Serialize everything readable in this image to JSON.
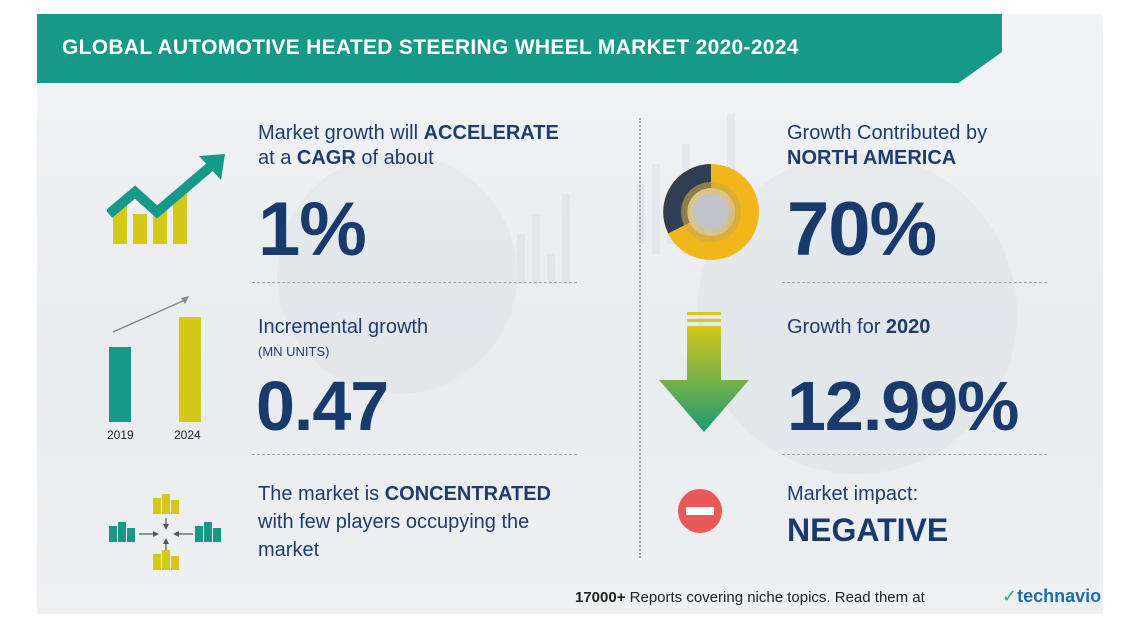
{
  "title": "GLOBAL AUTOMOTIVE HEATED STEERING WHEEL MARKET 2020-2024",
  "cagr": {
    "line1_prefix": "Market growth will ",
    "line1_bold": "ACCELERATE",
    "line2_prefix": "at a ",
    "line2_bold": "CAGR",
    "line2_suffix": " of about",
    "value": "1%"
  },
  "incremental": {
    "label": "Incremental growth",
    "unit": "(MN UNITS)",
    "value": "0.47",
    "bar_years": [
      "2019",
      "2024"
    ]
  },
  "concentration": {
    "line1_prefix": "The market is ",
    "line1_bold": "CONCENTRATED",
    "line2": "with few players occupying the",
    "line3": "market"
  },
  "region": {
    "line1": "Growth Contributed by",
    "line2_bold": "NORTH AMERICA",
    "value": "70%"
  },
  "yoy": {
    "label_prefix": "Growth for ",
    "year_bold": "2020",
    "value": "12.99%"
  },
  "impact": {
    "label": "Market impact:",
    "value": "NEGATIVE"
  },
  "footer": {
    "count_bold": "17000+",
    "text": " Reports covering niche topics. Read them at",
    "brand": "technavio"
  },
  "colors": {
    "teal": "#17998a",
    "yellow": "#d4c81a",
    "navy": "#183a6c",
    "green_arrow": "#2fa86a",
    "red": "#e85a5a",
    "donut_gold": "#f1b61a",
    "donut_dark": "#2f3e52"
  },
  "icons": [
    "growth-chart-icon",
    "bar-comparison-icon",
    "buildings-converging-icon",
    "donut-chart-icon",
    "down-arrow-icon",
    "minus-circle-icon",
    "technavio-logo-icon"
  ]
}
